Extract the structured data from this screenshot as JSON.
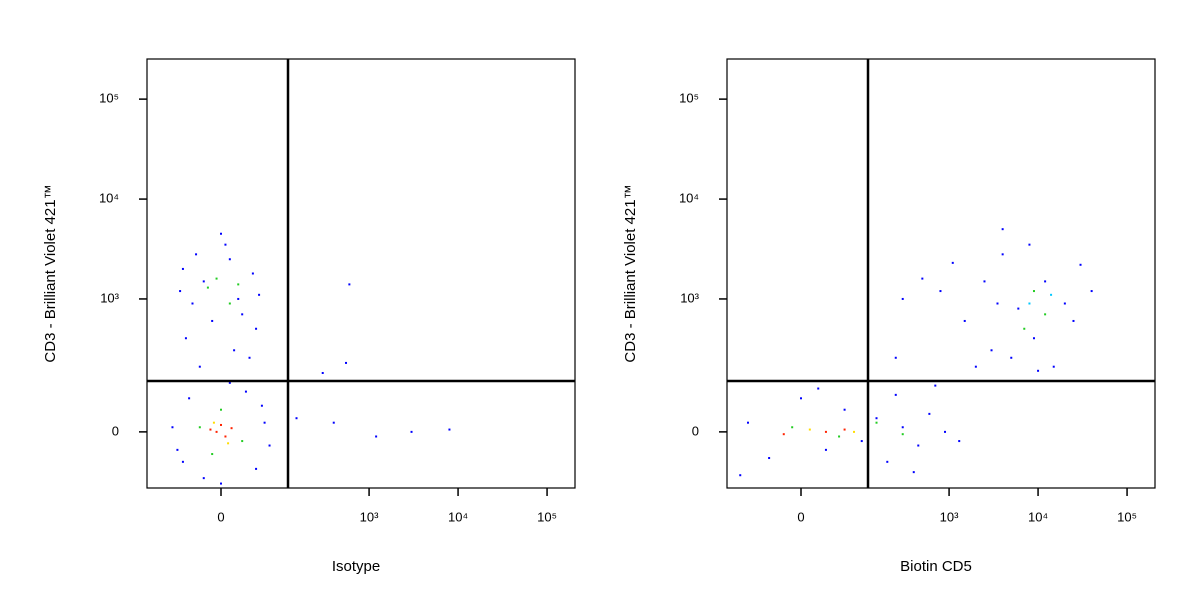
{
  "chart_data": [
    {
      "type": "scatter",
      "xlabel": "Isotype",
      "ylabel": "CD3 - Brilliant Violet 421™",
      "xscale": "biexponential",
      "yscale": "biexponential",
      "xlim": [
        -144,
        206000
      ],
      "ylim": [
        -158,
        252000
      ],
      "xticks": [
        0,
        {
          "value": 1000,
          "label": "10³"
        },
        {
          "value": 10000,
          "label": "10⁴"
        },
        {
          "value": 100000,
          "label": "10⁵"
        }
      ],
      "yticks": [
        0,
        {
          "value": 1000,
          "label": "10³"
        },
        {
          "value": 10000,
          "label": "10⁴"
        },
        {
          "value": 100000,
          "label": "10⁵"
        }
      ],
      "gates": {
        "x": 119,
        "y": 137
      },
      "series": [
        {
          "color": "#0000ff",
          "x": [
            -50,
            -20,
            10,
            40,
            -35,
            25,
            -10,
            50,
            -45,
            15,
            35,
            -25,
            5,
            -55,
            45,
            0,
            -30,
            20,
            -60,
            60,
            -40,
            45,
            -20,
            30,
            -70,
            70,
            0,
            -50,
            55,
            10,
            150,
            400,
            1200,
            3000,
            8000,
            600,
            550,
            300
          ],
          "y": [
            2000,
            1500,
            2500,
            1800,
            900,
            700,
            600,
            1100,
            400,
            300,
            250,
            200,
            3500,
            1200,
            500,
            4500,
            2800,
            1000,
            -40,
            20,
            80,
            -90,
            -120,
            100,
            10,
            -30,
            -140,
            -70,
            60,
            130,
            30,
            20,
            -10,
            0,
            5,
            1400,
            220,
            170
          ]
        },
        {
          "color": "#22cc22",
          "x": [
            -15,
            10,
            -5,
            20,
            -25,
            25,
            0,
            -10
          ],
          "y": [
            1300,
            900,
            1600,
            1400,
            10,
            -20,
            50,
            -50
          ]
        },
        {
          "color": "#ffdd00",
          "x": [
            -8,
            8
          ],
          "y": [
            20,
            -25
          ]
        },
        {
          "color": "#ff2200",
          "x": [
            -5,
            5,
            0,
            -12,
            12
          ],
          "y": [
            0,
            -10,
            15,
            5,
            8
          ]
        }
      ]
    },
    {
      "type": "scatter",
      "xlabel": "Biotin CD5",
      "ylabel": "CD3 - Brilliant Violet 421™",
      "xscale": "biexponential",
      "yscale": "biexponential",
      "xlim": [
        -144,
        206000
      ],
      "ylim": [
        -158,
        252000
      ],
      "xticks": [
        0,
        {
          "value": 1000,
          "label": "10³"
        },
        {
          "value": 10000,
          "label": "10⁴"
        },
        {
          "value": 100000,
          "label": "10⁵"
        }
      ],
      "yticks": [
        0,
        {
          "value": 1000,
          "label": "10³"
        },
        {
          "value": 10000,
          "label": "10⁴"
        },
        {
          "value": 100000,
          "label": "10⁵"
        }
      ],
      "gates": {
        "x": 119,
        "y": 137
      },
      "series": [
        {
          "color": "#0000ff",
          "x": [
            -80,
            -40,
            0,
            30,
            60,
            100,
            150,
            200,
            300,
            450,
            600,
            900,
            1300,
            -100,
            20,
            250,
            400,
            700,
            2500,
            4000,
            6000,
            9000,
            12000,
            20000,
            30000,
            3000,
            5000,
            15000,
            8000,
            25000,
            3500,
            40000,
            10000,
            1500,
            800,
            500,
            300,
            250,
            2000,
            1100,
            4000
          ],
          "y": [
            20,
            -60,
            80,
            -40,
            50,
            -20,
            30,
            -70,
            10,
            -30,
            40,
            0,
            -20,
            -110,
            110,
            90,
            -100,
            120,
            1500,
            2800,
            800,
            400,
            1500,
            900,
            2200,
            300,
            250,
            200,
            3500,
            600,
            900,
            1200,
            180,
            600,
            1200,
            1600,
            1000,
            250,
            200,
            2300,
            5000
          ]
        },
        {
          "color": "#22cc22",
          "x": [
            9000,
            12000,
            7000,
            -10,
            50,
            150,
            300
          ],
          "y": [
            1200,
            700,
            500,
            10,
            -10,
            20,
            -5
          ]
        },
        {
          "color": "#00c8ff",
          "x": [
            8000,
            14000
          ],
          "y": [
            900,
            1100
          ]
        },
        {
          "color": "#ffdd00",
          "x": [
            10,
            80
          ],
          "y": [
            5,
            0
          ]
        },
        {
          "color": "#ff2200",
          "x": [
            30,
            60,
            -20
          ],
          "y": [
            0,
            5,
            -5
          ]
        }
      ]
    }
  ]
}
